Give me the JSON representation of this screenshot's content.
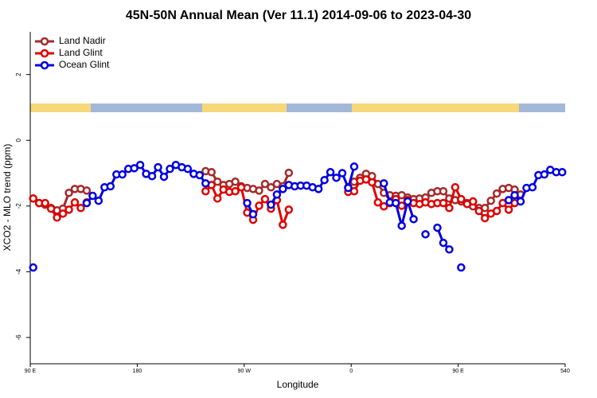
{
  "chart_data": {
    "type": "line",
    "title": "45N-50N Annual Mean (Ver 11.1)   2014-09-06 to 2023-04-30",
    "xlabel": "Longitude",
    "ylabel": "XCO2 - MLO trend (ppm)",
    "x": [
      92.5,
      97.5,
      102.5,
      107.5,
      112.5,
      117.5,
      122.5,
      127.5,
      132.5,
      137.5,
      142.5,
      147.5,
      152.5,
      157.5,
      162.5,
      167.5,
      172.5,
      177.5,
      182.5,
      187.5,
      192.5,
      197.5,
      202.5,
      207.5,
      212.5,
      217.5,
      222.5,
      227.5,
      232.5,
      237.5,
      242.5,
      247.5,
      252.5,
      257.5,
      262.5,
      267.5,
      272.5,
      277.5,
      282.5,
      287.5,
      292.5,
      297.5,
      302.5,
      307.5,
      312.5,
      317.5,
      322.5,
      327.5,
      332.5,
      337.5,
      342.5,
      347.5,
      352.5,
      357.5,
      362.5,
      367.5,
      372.5,
      377.5,
      382.5,
      387.5,
      392.5,
      397.5,
      402.5,
      407.5,
      412.5,
      417.5,
      422.5,
      427.5,
      432.5,
      437.5,
      442.5,
      447.5,
      452.5,
      457.5,
      462.5,
      467.5,
      472.5,
      477.5,
      482.5,
      487.5,
      492.5,
      497.5,
      502.5,
      507.5,
      512.5,
      517.5,
      522.5,
      527.5,
      532.5,
      537.5
    ],
    "series": [
      {
        "name": "Land Nadir",
        "color": "#a52a2a",
        "values": [
          -1.77,
          -1.91,
          -1.96,
          -2.06,
          -2.13,
          -2.08,
          -1.6,
          -1.48,
          -1.48,
          -1.53,
          null,
          null,
          null,
          null,
          null,
          null,
          null,
          null,
          null,
          null,
          null,
          null,
          null,
          null,
          null,
          null,
          null,
          null,
          null,
          -0.94,
          -0.97,
          -1.26,
          -1.36,
          -1.33,
          -1.26,
          -1.4,
          -1.45,
          -1.48,
          -1.53,
          -1.33,
          -1.43,
          -1.33,
          -1.4,
          -0.99,
          null,
          null,
          null,
          null,
          null,
          null,
          null,
          null,
          null,
          -1.43,
          -1.26,
          -1.14,
          -1.02,
          -1.09,
          -1.33,
          -1.6,
          -1.67,
          -1.69,
          -1.67,
          -1.74,
          -1.79,
          -1.77,
          -1.74,
          -1.6,
          -1.55,
          -1.55,
          -1.77,
          -1.82,
          -1.86,
          -1.91,
          -2.01,
          -2.06,
          -2.06,
          -1.84,
          -1.62,
          -1.48,
          -1.45,
          -1.5,
          -1.65,
          null,
          null,
          null,
          null,
          null,
          null,
          null
        ]
      },
      {
        "name": "Land Glint",
        "color": "#e00000",
        "values": [
          -1.77,
          -1.91,
          -1.91,
          -2.08,
          -2.35,
          -2.23,
          -2.11,
          -1.89,
          -2.06,
          -1.89,
          null,
          null,
          null,
          null,
          null,
          null,
          null,
          null,
          null,
          null,
          null,
          null,
          null,
          null,
          null,
          null,
          null,
          null,
          null,
          -1.55,
          -1.36,
          -1.77,
          -1.5,
          -1.57,
          -1.55,
          -1.43,
          -2.2,
          -2.42,
          -1.99,
          -1.79,
          -2.08,
          -1.82,
          -2.57,
          -2.11,
          null,
          null,
          null,
          null,
          null,
          null,
          null,
          null,
          null,
          -1.57,
          -1.55,
          -1.23,
          -1.19,
          -1.28,
          -1.89,
          -2.01,
          -1.91,
          -1.79,
          -1.99,
          -1.82,
          -1.91,
          -1.94,
          -1.89,
          -1.94,
          -1.91,
          -1.91,
          -2.06,
          -1.43,
          -1.79,
          -1.94,
          -1.86,
          -2.15,
          -2.37,
          -2.23,
          -2.15,
          -1.91,
          -2.11,
          -1.91,
          null,
          null,
          null,
          null,
          null,
          null,
          null,
          null
        ]
      },
      {
        "name": "Ocean Glint",
        "color": "#0000e0",
        "values": [
          -3.87,
          null,
          null,
          null,
          null,
          null,
          null,
          null,
          null,
          -1.91,
          -1.69,
          -1.84,
          -1.43,
          -1.4,
          -1.04,
          -1.04,
          -0.87,
          -0.85,
          -0.75,
          -1.02,
          -1.09,
          -0.82,
          -1.11,
          -0.87,
          -0.75,
          -0.82,
          -0.87,
          -1.02,
          -1.06,
          -1.31,
          null,
          null,
          null,
          null,
          null,
          null,
          -1.91,
          -2.25,
          null,
          null,
          -1.96,
          -1.65,
          -1.48,
          -1.36,
          -1.4,
          -1.38,
          -1.38,
          -1.43,
          -1.48,
          -1.21,
          -0.97,
          -1.14,
          -1.0,
          -1.45,
          -0.8,
          null,
          null,
          null,
          null,
          -1.31,
          -1.89,
          -1.91,
          -2.6,
          -1.86,
          -2.4,
          null,
          -2.86,
          null,
          -2.66,
          -3.12,
          -3.32,
          null,
          -3.87,
          null,
          null,
          null,
          null,
          null,
          null,
          null,
          -1.82,
          -1.67,
          -1.86,
          -1.45,
          -1.43,
          -1.06,
          -1.04,
          -0.9,
          -0.97,
          -0.97
        ]
      }
    ],
    "xlim": [
      90,
      540
    ],
    "xticks": [
      {
        "value": 90,
        "label": "90 E"
      },
      180,
      {
        "value": 270,
        "label": "90 W"
      },
      {
        "value": 360,
        "label": "0"
      },
      {
        "value": 450,
        "label": "90 E"
      },
      540
    ],
    "ylim": [
      -6.8,
      3.3
    ],
    "yticks": [
      2,
      0,
      -2,
      -4,
      -6
    ],
    "grid": false,
    "legend": "upper left"
  }
}
